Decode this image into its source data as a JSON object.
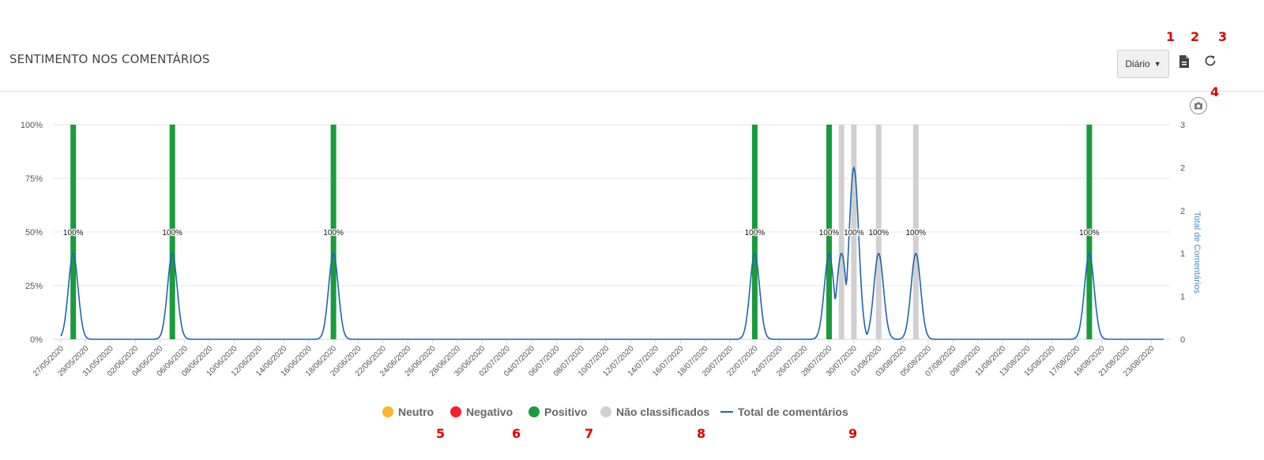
{
  "header": {
    "title": "SENTIMENTO NOS COMENTÁRIOS",
    "period_label": "Diário"
  },
  "annotations": [
    "1",
    "2",
    "3",
    "4",
    "5",
    "6",
    "7",
    "8",
    "9"
  ],
  "icons": {
    "export": "document-export-icon",
    "refresh": "refresh-icon",
    "camera": "camera-icon"
  },
  "colors": {
    "neutro": "#f7b52c",
    "negativo": "#f5222d",
    "positivo": "#1a9b3c",
    "nao_classificados": "#d0d0d0",
    "total": "#1f63b3"
  },
  "legend": [
    {
      "key": "neutro",
      "label": "Neutro",
      "color": "#f7b52c",
      "symbol": "dot"
    },
    {
      "key": "negativo",
      "label": "Negativo",
      "color": "#f5222d",
      "symbol": "dot"
    },
    {
      "key": "positivo",
      "label": "Positivo",
      "color": "#1a9b3c",
      "symbol": "dot"
    },
    {
      "key": "nao_classificados",
      "label": "Não classificados",
      "color": "#d0d0d0",
      "symbol": "dot"
    },
    {
      "key": "total",
      "label": "Total de comentários",
      "color": "#1f63b3",
      "symbol": "line"
    }
  ],
  "chart_data": {
    "type": "bar",
    "x_start": "27/05/2020",
    "x_end": "24/08/2020",
    "x_tick_labels": [
      "27/05/2020",
      "29/05/2020",
      "31/05/2020",
      "02/06/2020",
      "04/06/2020",
      "06/06/2020",
      "08/06/2020",
      "10/06/2020",
      "12/06/2020",
      "14/06/2020",
      "16/06/2020",
      "18/06/2020",
      "20/06/2020",
      "22/06/2020",
      "24/06/2020",
      "26/06/2020",
      "28/06/2020",
      "30/06/2020",
      "02/07/2020",
      "04/07/2020",
      "06/07/2020",
      "08/07/2020",
      "10/07/2020",
      "12/07/2020",
      "14/07/2020",
      "16/07/2020",
      "18/07/2020",
      "20/07/2020",
      "22/07/2020",
      "24/07/2020",
      "26/07/2020",
      "28/07/2020",
      "30/07/2020",
      "01/08/2020",
      "03/08/2020",
      "05/08/2020",
      "07/08/2020",
      "09/08/2020",
      "11/08/2020",
      "13/08/2020",
      "15/08/2020",
      "17/08/2020",
      "19/08/2020",
      "21/08/2020",
      "23/08/2020"
    ],
    "y_left": {
      "ticks": [
        "0%",
        "25%",
        "50%",
        "75%",
        "100%"
      ],
      "range": [
        0,
        100
      ]
    },
    "y_right": {
      "label": "Total de Comentários",
      "ticks": [
        "0",
        "1",
        "1",
        "2",
        "2",
        "3"
      ],
      "range": [
        0,
        2.5
      ]
    },
    "bars": [
      {
        "date": "28/05/2020",
        "series": "positivo",
        "value": 100,
        "label": "100%"
      },
      {
        "date": "05/06/2020",
        "series": "positivo",
        "value": 100,
        "label": "100%"
      },
      {
        "date": "18/06/2020",
        "series": "positivo",
        "value": 100,
        "label": "100%"
      },
      {
        "date": "22/07/2020",
        "series": "positivo",
        "value": 100,
        "label": "100%"
      },
      {
        "date": "28/07/2020",
        "series": "positivo",
        "value": 100,
        "label": "100%"
      },
      {
        "date": "29/07/2020",
        "series": "nao_classificados",
        "value": 100,
        "label": ""
      },
      {
        "date": "30/07/2020",
        "series": "nao_classificados",
        "value": 100,
        "label": "100%"
      },
      {
        "date": "01/08/2020",
        "series": "nao_classificados",
        "value": 100,
        "label": "100%"
      },
      {
        "date": "04/08/2020",
        "series": "nao_classificados",
        "value": 100,
        "label": "100%"
      },
      {
        "date": "18/08/2020",
        "series": "positivo",
        "value": 100,
        "label": "100%"
      }
    ],
    "total_series": {
      "name": "Total de comentários",
      "points": [
        {
          "date": "28/05/2020",
          "value": 1
        },
        {
          "date": "05/06/2020",
          "value": 1
        },
        {
          "date": "18/06/2020",
          "value": 1
        },
        {
          "date": "22/07/2020",
          "value": 1
        },
        {
          "date": "28/07/2020",
          "value": 1
        },
        {
          "date": "29/07/2020",
          "value": 1
        },
        {
          "date": "30/07/2020",
          "value": 2
        },
        {
          "date": "01/08/2020",
          "value": 1
        },
        {
          "date": "04/08/2020",
          "value": 1
        },
        {
          "date": "18/08/2020",
          "value": 1
        }
      ]
    }
  }
}
